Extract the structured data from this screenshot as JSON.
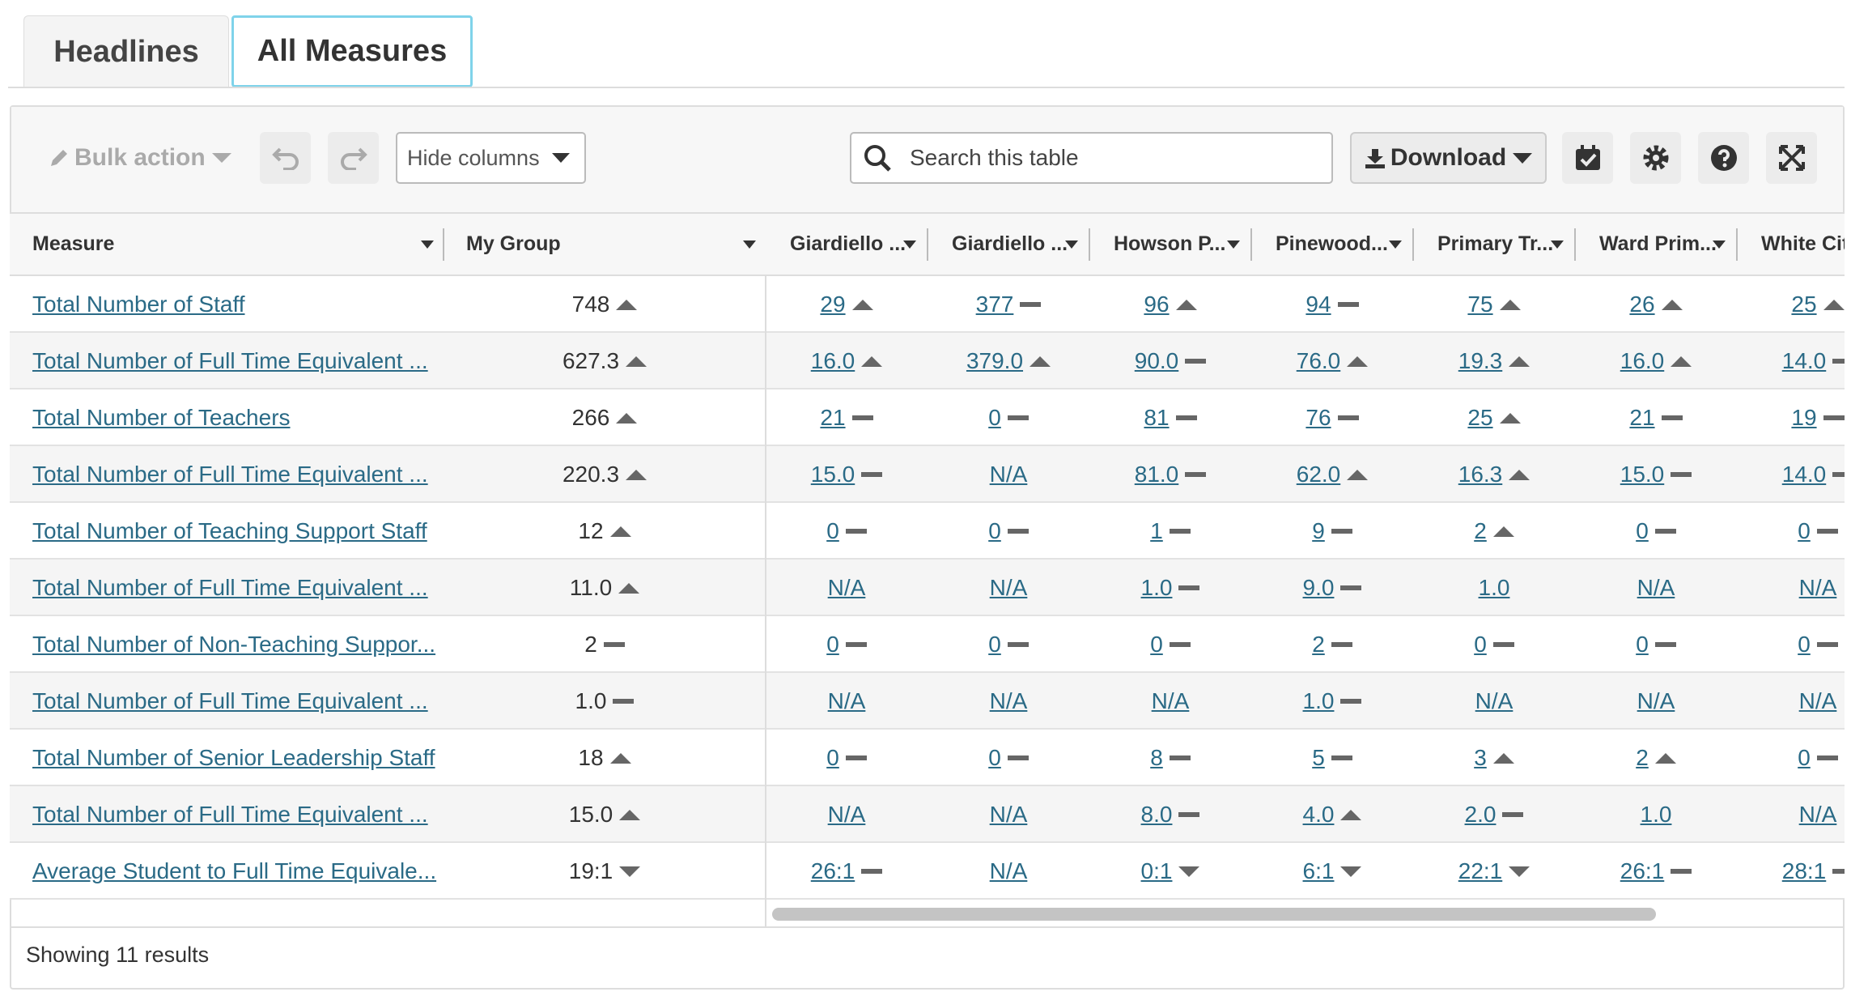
{
  "tabs": [
    "Headlines",
    "All Measures"
  ],
  "toolbar": {
    "bulk_action": "Bulk action",
    "hide_columns": "Hide columns",
    "search_placeholder": "Search this table",
    "download": "Download"
  },
  "table": {
    "columns": [
      "Measure",
      "My Group",
      "Giardiello ...",
      "Giardiello ...",
      "Howson P...",
      "Pinewood...",
      "Primary Tr...",
      "Ward Prim...",
      "White Cit"
    ],
    "rows": [
      {
        "measure": "Total Number of Staff",
        "cells": [
          {
            "text": "748",
            "trend": "up"
          },
          {
            "text": "29",
            "trend": "up"
          },
          {
            "text": "377",
            "trend": "flat"
          },
          {
            "text": "96",
            "trend": "up"
          },
          {
            "text": "94",
            "trend": "flat"
          },
          {
            "text": "75",
            "trend": "up"
          },
          {
            "text": "26",
            "trend": "up"
          },
          {
            "text": "25",
            "trend": "up"
          }
        ]
      },
      {
        "measure": "Total Number of Full Time Equivalent ...",
        "cells": [
          {
            "text": "627.3",
            "trend": "up"
          },
          {
            "text": "16.0",
            "trend": "up"
          },
          {
            "text": "379.0",
            "trend": "up"
          },
          {
            "text": "90.0",
            "trend": "flat"
          },
          {
            "text": "76.0",
            "trend": "up"
          },
          {
            "text": "19.3",
            "trend": "up"
          },
          {
            "text": "16.0",
            "trend": "up"
          },
          {
            "text": "14.0",
            "trend": "flat"
          }
        ]
      },
      {
        "measure": "Total Number of Teachers",
        "cells": [
          {
            "text": "266",
            "trend": "up"
          },
          {
            "text": "21",
            "trend": "flat"
          },
          {
            "text": "0",
            "trend": "flat"
          },
          {
            "text": "81",
            "trend": "flat"
          },
          {
            "text": "76",
            "trend": "flat"
          },
          {
            "text": "25",
            "trend": "up"
          },
          {
            "text": "21",
            "trend": "flat"
          },
          {
            "text": "19",
            "trend": "flat"
          }
        ]
      },
      {
        "measure": "Total Number of Full Time Equivalent ...",
        "cells": [
          {
            "text": "220.3",
            "trend": "up"
          },
          {
            "text": "15.0",
            "trend": "flat"
          },
          {
            "text": "N/A"
          },
          {
            "text": "81.0",
            "trend": "flat"
          },
          {
            "text": "62.0",
            "trend": "up"
          },
          {
            "text": "16.3",
            "trend": "up"
          },
          {
            "text": "15.0",
            "trend": "flat"
          },
          {
            "text": "14.0",
            "trend": "flat"
          }
        ]
      },
      {
        "measure": "Total Number of Teaching Support Staff",
        "cells": [
          {
            "text": "12",
            "trend": "up"
          },
          {
            "text": "0",
            "trend": "flat"
          },
          {
            "text": "0",
            "trend": "flat"
          },
          {
            "text": "1",
            "trend": "flat"
          },
          {
            "text": "9",
            "trend": "flat"
          },
          {
            "text": "2",
            "trend": "up"
          },
          {
            "text": "0",
            "trend": "flat"
          },
          {
            "text": "0",
            "trend": "flat"
          }
        ]
      },
      {
        "measure": "Total Number of Full Time Equivalent ...",
        "cells": [
          {
            "text": "11.0",
            "trend": "up"
          },
          {
            "text": "N/A"
          },
          {
            "text": "N/A"
          },
          {
            "text": "1.0",
            "trend": "flat"
          },
          {
            "text": "9.0",
            "trend": "flat"
          },
          {
            "text": "1.0"
          },
          {
            "text": "N/A"
          },
          {
            "text": "N/A"
          }
        ]
      },
      {
        "measure": "Total Number of Non-Teaching Suppor...",
        "cells": [
          {
            "text": "2",
            "trend": "flat"
          },
          {
            "text": "0",
            "trend": "flat"
          },
          {
            "text": "0",
            "trend": "flat"
          },
          {
            "text": "0",
            "trend": "flat"
          },
          {
            "text": "2",
            "trend": "flat"
          },
          {
            "text": "0",
            "trend": "flat"
          },
          {
            "text": "0",
            "trend": "flat"
          },
          {
            "text": "0",
            "trend": "flat"
          }
        ]
      },
      {
        "measure": "Total Number of Full Time Equivalent ...",
        "cells": [
          {
            "text": "1.0",
            "trend": "flat"
          },
          {
            "text": "N/A"
          },
          {
            "text": "N/A"
          },
          {
            "text": "N/A"
          },
          {
            "text": "1.0",
            "trend": "flat"
          },
          {
            "text": "N/A"
          },
          {
            "text": "N/A"
          },
          {
            "text": "N/A"
          }
        ]
      },
      {
        "measure": "Total Number of Senior Leadership Staff",
        "cells": [
          {
            "text": "18",
            "trend": "up"
          },
          {
            "text": "0",
            "trend": "flat"
          },
          {
            "text": "0",
            "trend": "flat"
          },
          {
            "text": "8",
            "trend": "flat"
          },
          {
            "text": "5",
            "trend": "flat"
          },
          {
            "text": "3",
            "trend": "up"
          },
          {
            "text": "2",
            "trend": "up"
          },
          {
            "text": "0",
            "trend": "flat"
          }
        ]
      },
      {
        "measure": "Total Number of Full Time Equivalent ...",
        "cells": [
          {
            "text": "15.0",
            "trend": "up"
          },
          {
            "text": "N/A"
          },
          {
            "text": "N/A"
          },
          {
            "text": "8.0",
            "trend": "flat"
          },
          {
            "text": "4.0",
            "trend": "up"
          },
          {
            "text": "2.0",
            "trend": "flat"
          },
          {
            "text": "1.0"
          },
          {
            "text": "N/A"
          }
        ]
      },
      {
        "measure": "Average Student to Full Time Equivale...",
        "cells": [
          {
            "text": "19:1",
            "trend": "down"
          },
          {
            "text": "26:1",
            "trend": "flat"
          },
          {
            "text": "N/A"
          },
          {
            "text": "0:1",
            "trend": "down"
          },
          {
            "text": "6:1",
            "trend": "down"
          },
          {
            "text": "22:1",
            "trend": "down"
          },
          {
            "text": "26:1",
            "trend": "flat"
          },
          {
            "text": "28:1",
            "trend": "flat"
          }
        ]
      }
    ]
  },
  "footer": "Showing 11 results"
}
